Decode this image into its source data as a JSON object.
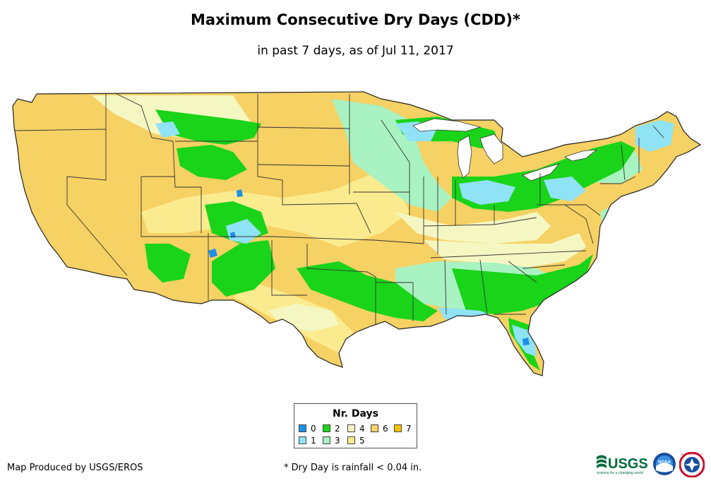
{
  "title": "Maximum Consecutive Dry Days (CDD)*",
  "subtitle": "in past 7 days, as of Jul 11, 2017",
  "legend": {
    "title": "Nr. Days",
    "items": [
      {
        "label": "0",
        "color": "#1e90e8"
      },
      {
        "label": "1",
        "color": "#8fe3f5"
      },
      {
        "label": "2",
        "color": "#19d419"
      },
      {
        "label": "3",
        "color": "#a9f2c2"
      },
      {
        "label": "4",
        "color": "#f5f7c2"
      },
      {
        "label": "5",
        "color": "#fbeb8f"
      },
      {
        "label": "6",
        "color": "#f6d163"
      },
      {
        "label": "7",
        "color": "#f8c400"
      }
    ]
  },
  "credit": "Map Produced by USGS/EROS",
  "footnote": "* Dry Day is rainfall < 0.04 in.",
  "logos": {
    "usgs_text": "USGS",
    "usgs_tagline": "science for a changing world",
    "noaa_text": "NOAA",
    "nws_text": "NATIONAL WEATHER SERVICE"
  }
}
